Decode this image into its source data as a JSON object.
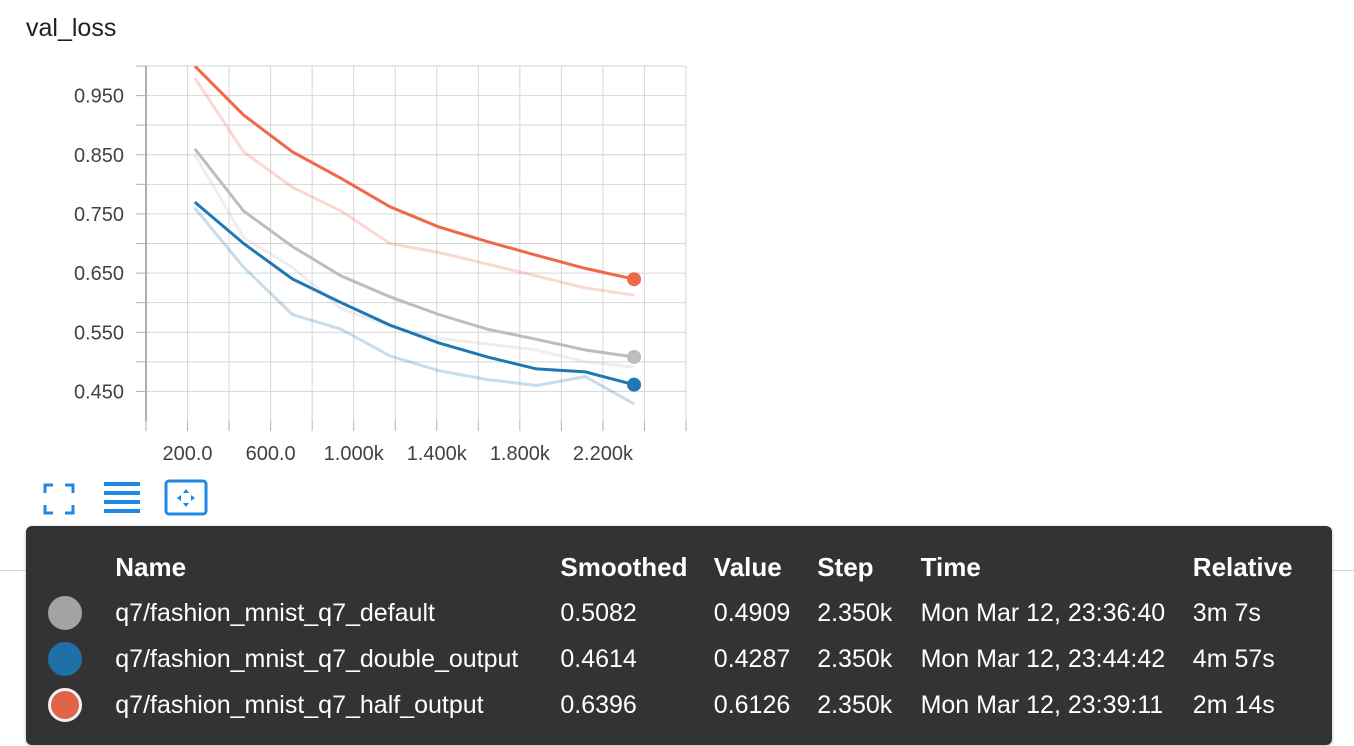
{
  "chart_data": {
    "type": "line",
    "title": "val_loss",
    "xlabel": "",
    "ylabel": "",
    "xlim": [
      0,
      2600
    ],
    "ylim": [
      0.4,
      1.0
    ],
    "xticks": [
      200,
      600,
      1000,
      1400,
      1800,
      2200
    ],
    "xtick_labels": [
      "200.0",
      "600.0",
      "1.000k",
      "1.400k",
      "1.800k",
      "2.200k"
    ],
    "yticks": [
      0.45,
      0.55,
      0.65,
      0.75,
      0.85,
      0.95
    ],
    "ytick_labels": [
      "0.450",
      "0.550",
      "0.650",
      "0.750",
      "0.850",
      "0.950"
    ],
    "grid": true,
    "series": [
      {
        "name": "q7/fashion_mnist_q7_default",
        "color": "#bdbdbd",
        "x": [
          235,
          470,
          705,
          940,
          1175,
          1410,
          1645,
          1880,
          2115,
          2350
        ],
        "raw": [
          0.85,
          0.71,
          0.66,
          0.59,
          0.56,
          0.54,
          0.53,
          0.52,
          0.5,
          0.4909
        ],
        "smoothed": [
          0.86,
          0.755,
          0.695,
          0.645,
          0.61,
          0.58,
          0.555,
          0.538,
          0.52,
          0.5082
        ]
      },
      {
        "name": "q7/fashion_mnist_q7_double_output",
        "color": "#1f77b4",
        "x": [
          235,
          470,
          705,
          940,
          1175,
          1410,
          1645,
          1880,
          2115,
          2350
        ],
        "raw": [
          0.76,
          0.66,
          0.58,
          0.555,
          0.51,
          0.485,
          0.47,
          0.46,
          0.475,
          0.4287
        ],
        "smoothed": [
          0.77,
          0.7,
          0.64,
          0.6,
          0.562,
          0.532,
          0.508,
          0.488,
          0.483,
          0.4614
        ]
      },
      {
        "name": "q7/fashion_mnist_q7_half_output",
        "color": "#f0684a",
        "x": [
          235,
          470,
          705,
          940,
          1175,
          1410,
          1645,
          1880,
          2115,
          2350
        ],
        "raw": [
          0.98,
          0.855,
          0.795,
          0.755,
          0.7,
          0.685,
          0.665,
          0.645,
          0.625,
          0.6126
        ],
        "smoothed": [
          1.0,
          0.917,
          0.855,
          0.81,
          0.762,
          0.728,
          0.703,
          0.68,
          0.658,
          0.6396
        ]
      }
    ]
  },
  "toolbar": {
    "expand_icon": "fullscreen-icon",
    "list_icon": "data-table-icon",
    "fit_icon": "fit-domain-icon"
  },
  "tooltip": {
    "headers": {
      "name": "Name",
      "smoothed": "Smoothed",
      "value": "Value",
      "step": "Step",
      "time": "Time",
      "relative": "Relative"
    },
    "rows": [
      {
        "color": "#a3a3a3",
        "border": "#a3a3a3",
        "name": "q7/fashion_mnist_q7_default",
        "smoothed": "0.5082",
        "value": "0.4909",
        "step": "2.350k",
        "time": "Mon Mar 12, 23:36:40",
        "relative": "3m 7s"
      },
      {
        "color": "#1f6fa8",
        "border": "#1f6fa8",
        "name": "q7/fashion_mnist_q7_double_output",
        "smoothed": "0.4614",
        "value": "0.4287",
        "step": "2.350k",
        "time": "Mon Mar 12, 23:44:42",
        "relative": "4m 57s"
      },
      {
        "color": "#e0644a",
        "border": "#f2f2f2",
        "name": "q7/fashion_mnist_q7_half_output",
        "smoothed": "0.6396",
        "value": "0.6126",
        "step": "2.350k",
        "time": "Mon Mar 12, 23:39:11",
        "relative": "2m 14s"
      }
    ]
  }
}
